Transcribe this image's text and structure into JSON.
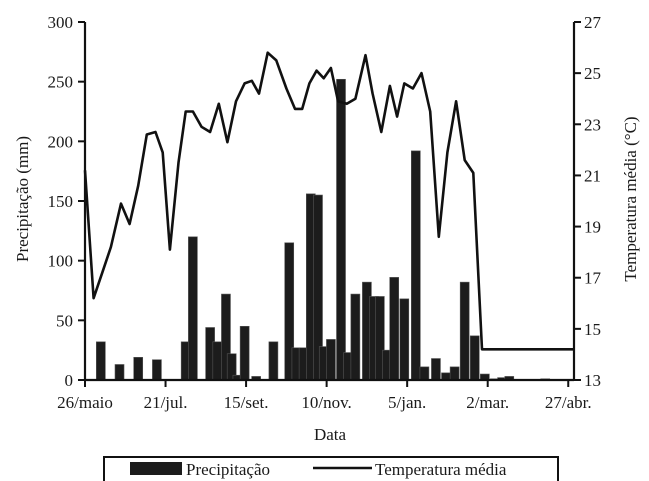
{
  "chart_data": {
    "type": "bar+line",
    "xlabel": "Data",
    "ylabel_left": "Precipitação (mm)",
    "ylabel_right": "Temperatura média (°C)",
    "ylim_left": [
      0,
      300
    ],
    "yticks_left": [
      0,
      50,
      100,
      150,
      200,
      250,
      300
    ],
    "ylim_right": [
      13,
      27
    ],
    "yticks_right": [
      13,
      15,
      17,
      19,
      21,
      23,
      25,
      27
    ],
    "xlim": [
      0,
      340
    ],
    "x_ticks": [
      {
        "x": 0,
        "label": "26/maio"
      },
      {
        "x": 56,
        "label": "21/jul."
      },
      {
        "x": 112,
        "label": "15/set."
      },
      {
        "x": 168,
        "label": "10/nov."
      },
      {
        "x": 224,
        "label": "5/jan."
      },
      {
        "x": 280,
        "label": "2/mar."
      },
      {
        "x": 336,
        "label": "27/abr."
      }
    ],
    "legend": {
      "position": "bottom",
      "bar_label": "Precipitação",
      "line_label": "Temperatura média"
    },
    "grid": false,
    "bars": {
      "name": "Precipitação",
      "x": [
        11,
        24,
        37,
        50,
        70,
        75,
        87,
        92,
        98,
        102,
        106,
        111,
        119,
        131,
        142,
        147,
        152,
        157,
        162,
        166,
        171,
        178,
        183,
        188,
        196,
        201,
        205,
        210,
        215,
        222,
        230,
        236,
        244,
        251,
        257,
        264,
        271,
        278,
        285,
        290,
        295,
        302,
        320,
        328,
        335
      ],
      "values": [
        32,
        13,
        19,
        17,
        32,
        120,
        44,
        32,
        72,
        22,
        4,
        45,
        3,
        32,
        115,
        27,
        27,
        156,
        155,
        28,
        34,
        252,
        23,
        72,
        82,
        70,
        70,
        25,
        86,
        68,
        192,
        11,
        18,
        6,
        11,
        82,
        37,
        5,
        1,
        2,
        3,
        0,
        1,
        0,
        0
      ]
    },
    "line": {
      "name": "Temperatura média",
      "x": [
        0,
        6,
        12,
        18,
        25,
        31,
        37,
        43,
        49,
        54,
        59,
        65,
        70,
        75,
        81,
        87,
        93,
        99,
        105,
        111,
        116,
        121,
        127,
        133,
        140,
        146,
        151,
        156,
        161,
        166,
        171,
        176,
        182,
        188,
        195,
        200,
        206,
        212,
        217,
        222,
        228,
        234,
        240,
        246,
        252,
        258,
        264,
        270,
        276,
        282,
        288,
        293,
        300,
        306,
        311,
        317,
        323,
        330,
        336,
        340
      ],
      "values": [
        21.2,
        16.2,
        17.2,
        18.2,
        19.9,
        19.1,
        20.6,
        22.6,
        22.7,
        21.9,
        18.1,
        21.5,
        23.5,
        23.5,
        22.9,
        22.7,
        23.8,
        22.3,
        23.9,
        24.6,
        24.7,
        24.2,
        25.8,
        25.5,
        24.4,
        23.6,
        23.6,
        24.6,
        25.1,
        24.8,
        25.2,
        23.9,
        23.8,
        24.0,
        25.7,
        24.2,
        22.7,
        24.5,
        23.3,
        24.6,
        24.4,
        25.0,
        23.5,
        18.6,
        21.9,
        23.9,
        21.6,
        21.1,
        14.2,
        14.2,
        14.2,
        14.2,
        14.2,
        14.2,
        14.2,
        14.2,
        14.2,
        14.2,
        14.2,
        14.2
      ]
    }
  }
}
